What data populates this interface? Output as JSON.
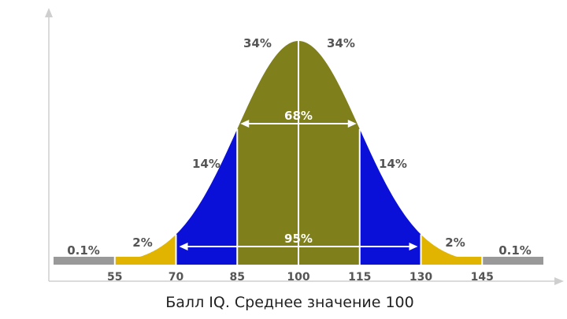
{
  "chart_data": {
    "type": "area",
    "xlabel": "Балл IQ. Среднее значение 100",
    "mean": 100,
    "sd": 15,
    "xlim": [
      50,
      150
    ],
    "x_ticks": [
      "55",
      "70",
      "85",
      "100",
      "115",
      "130",
      "145"
    ],
    "segments": [
      {
        "from": 40,
        "to": 55,
        "percent": "0.1%",
        "color": "#999999"
      },
      {
        "from": 55,
        "to": 70,
        "percent": "2%",
        "color": "#e0b400"
      },
      {
        "from": 70,
        "to": 85,
        "percent": "14%",
        "color": "#0a10d8"
      },
      {
        "from": 85,
        "to": 100,
        "percent": "34%",
        "color": "#7f7f1c"
      },
      {
        "from": 100,
        "to": 115,
        "percent": "34%",
        "color": "#7f7f1c"
      },
      {
        "from": 115,
        "to": 130,
        "percent": "14%",
        "color": "#0a10d8"
      },
      {
        "from": 130,
        "to": 145,
        "percent": "2%",
        "color": "#e0b400"
      },
      {
        "from": 145,
        "to": 160,
        "percent": "0.1%",
        "color": "#999999"
      }
    ],
    "ranges": [
      {
        "from": 85,
        "to": 115,
        "percent": "68%"
      },
      {
        "from": 70,
        "to": 130,
        "percent": "95%"
      }
    ]
  }
}
